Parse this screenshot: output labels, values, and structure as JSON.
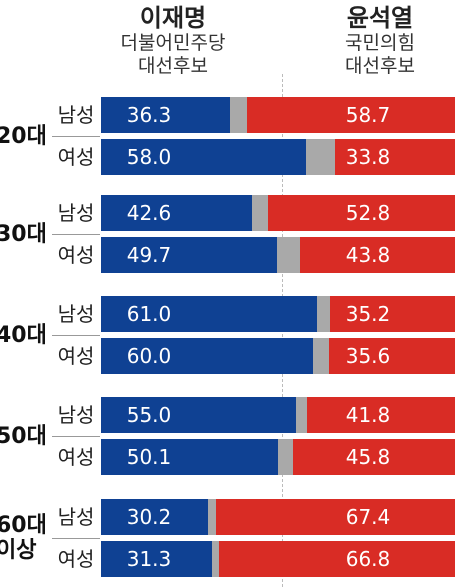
{
  "candidates": {
    "left": {
      "name": "이재명",
      "party": "더불어민주당",
      "role": "대선후보",
      "color": "#0f4193"
    },
    "right": {
      "name": "윤석열",
      "party": "국민의힘",
      "role": "대선후보",
      "color": "#d92c25"
    },
    "other_color": "#a9a9a9"
  },
  "chart_data": {
    "type": "bar",
    "orientation": "horizontal-stacked",
    "unit": "%",
    "groups": [
      {
        "age": "20대",
        "rows": [
          {
            "gender": "남성",
            "lee": 36.3,
            "yoon": 58.7
          },
          {
            "gender": "여성",
            "lee": 58.0,
            "yoon": 33.8
          }
        ]
      },
      {
        "age": "30대",
        "rows": [
          {
            "gender": "남성",
            "lee": 42.6,
            "yoon": 52.8
          },
          {
            "gender": "여성",
            "lee": 49.7,
            "yoon": 43.8
          }
        ]
      },
      {
        "age": "40대",
        "rows": [
          {
            "gender": "남성",
            "lee": 61.0,
            "yoon": 35.2
          },
          {
            "gender": "여성",
            "lee": 60.0,
            "yoon": 35.6
          }
        ]
      },
      {
        "age": "50대",
        "rows": [
          {
            "gender": "남성",
            "lee": 55.0,
            "yoon": 41.8
          },
          {
            "gender": "여성",
            "lee": 50.1,
            "yoon": 45.8
          }
        ]
      },
      {
        "age": "60대 이상",
        "age_lines": [
          "60대",
          "이상"
        ],
        "rows": [
          {
            "gender": "남성",
            "lee": 30.2,
            "yoon": 67.4
          },
          {
            "gender": "여성",
            "lee": 31.3,
            "yoon": 66.8
          }
        ]
      }
    ]
  }
}
